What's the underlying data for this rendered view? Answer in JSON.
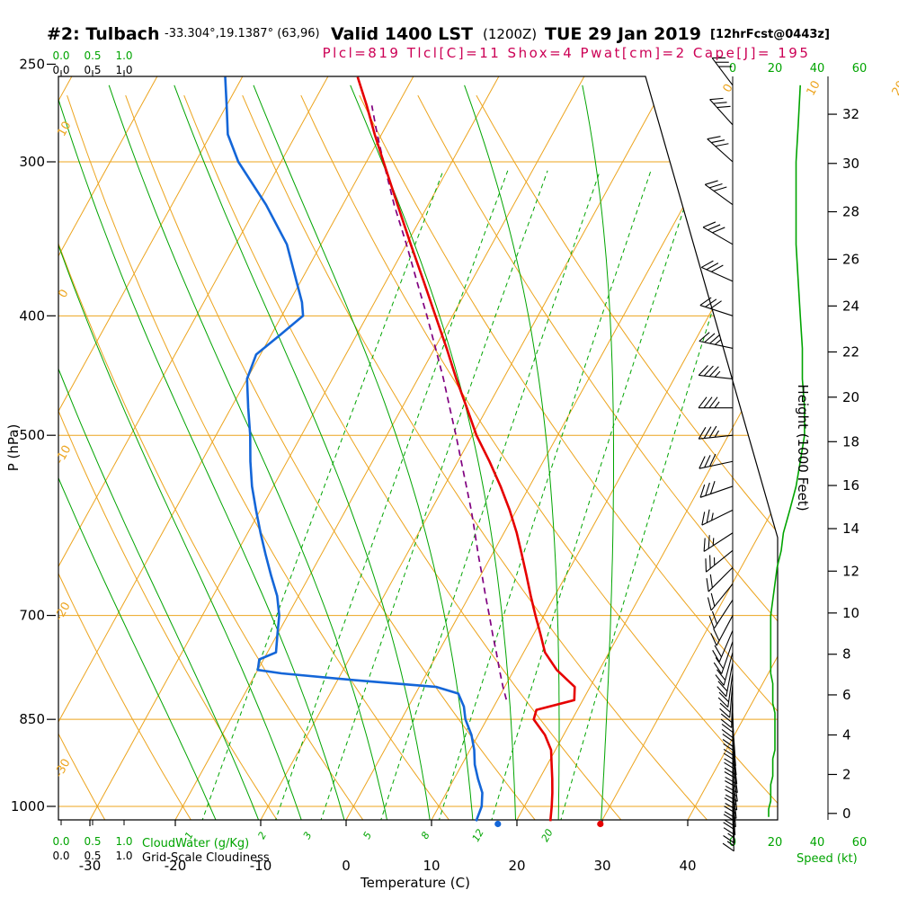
{
  "header": {
    "station_id": "#2: Tulbach",
    "coords": "-33.304°,19.1387° (63,96)",
    "valid_time": "Valid 1400 LST",
    "valid_utc": "(1200Z)",
    "valid_date": "TUE 29 Jan 2019",
    "forecast_info": "[12hrFcst@0443z]",
    "indices_line": "Plcl=819 Tlcl[C]=11 Shox=4 Pwat[cm]=2 Cape[J]= 195"
  },
  "axes": {
    "pressure_label": "P (hPa)",
    "pressure_ticks": [
      250,
      300,
      400,
      500,
      700,
      850,
      1000
    ],
    "temperature_label": "Temperature (C)",
    "temperature_ticks": [
      -30,
      -20,
      -10,
      0,
      10,
      20,
      30,
      40
    ],
    "height_label": "Height (1000 Feet)",
    "height_ticks": [
      0,
      2,
      4,
      6,
      8,
      10,
      12,
      14,
      16,
      18,
      20,
      22,
      24,
      26,
      28,
      30,
      32
    ],
    "speed_label": "Speed (kt)",
    "speed_ticks": [
      0,
      20,
      40,
      60
    ],
    "cloudwater_label": "CloudWater (g/Kg)",
    "cloudwater_ticks": [
      "0.0",
      "0.5",
      "1.0"
    ],
    "cloudiness_label": "Grid-Scale Cloudiness",
    "cloudiness_ticks": [
      "0.0",
      "0.5",
      "1.0"
    ],
    "mixing_ratio_labels": [
      1,
      2,
      3,
      5,
      8,
      12,
      20
    ],
    "isotherm_line_labels": [
      0,
      10,
      20,
      30
    ],
    "dry_adiabat_line_labels": [
      10,
      0,
      -10,
      -20,
      -30
    ]
  },
  "colors": {
    "grid_orange": "#eca41e",
    "grid_green": "#00a400",
    "temperature_red": "#e60000",
    "dewpoint_blue": "#1466d8",
    "parcel_purple": "#800080",
    "indices_crimson": "#cc0055",
    "frame_black": "#000000"
  },
  "chart_data": {
    "type": "line",
    "subtype": "skew-t-log-p-sounding",
    "pressure_range_hpa": [
      255,
      1030
    ],
    "indices": {
      "plcl_hpa": 819,
      "tlcl_c": 11,
      "showalter": 4,
      "pwat_cm": 2,
      "cape_j": 195
    },
    "surface_markers": {
      "temperature_c": 30,
      "dewpoint_c": 18
    },
    "temperature_profile_c": [
      [
        1028,
        24.0
      ],
      [
        1000,
        23.2
      ],
      [
        975,
        22.4
      ],
      [
        950,
        21.5
      ],
      [
        925,
        20.5
      ],
      [
        900,
        19.5
      ],
      [
        875,
        17.8
      ],
      [
        850,
        15.5
      ],
      [
        835,
        15.2
      ],
      [
        820,
        19.0
      ],
      [
        800,
        18.2
      ],
      [
        775,
        15.0
      ],
      [
        750,
        12.5
      ],
      [
        725,
        10.8
      ],
      [
        700,
        9.0
      ],
      [
        675,
        7.2
      ],
      [
        650,
        5.4
      ],
      [
        625,
        3.5
      ],
      [
        600,
        1.5
      ],
      [
        575,
        -0.8
      ],
      [
        550,
        -3.4
      ],
      [
        525,
        -6.3
      ],
      [
        500,
        -9.5
      ],
      [
        475,
        -12.4
      ],
      [
        450,
        -15.5
      ],
      [
        425,
        -18.6
      ],
      [
        400,
        -22.0
      ],
      [
        375,
        -25.6
      ],
      [
        350,
        -29.5
      ],
      [
        325,
        -33.6
      ],
      [
        300,
        -38.0
      ],
      [
        285,
        -40.8
      ],
      [
        270,
        -43.6
      ],
      [
        256,
        -46.5
      ]
    ],
    "dewpoint_profile_c": [
      [
        1028,
        15.3
      ],
      [
        1000,
        15.0
      ],
      [
        975,
        14.2
      ],
      [
        950,
        12.8
      ],
      [
        925,
        11.5
      ],
      [
        900,
        10.5
      ],
      [
        875,
        9.2
      ],
      [
        850,
        7.5
      ],
      [
        830,
        6.5
      ],
      [
        810,
        5.0
      ],
      [
        800,
        2.0
      ],
      [
        790,
        -8.0
      ],
      [
        780,
        -17.0
      ],
      [
        775,
        -20.0
      ],
      [
        760,
        -20.5
      ],
      [
        750,
        -19.0
      ],
      [
        725,
        -20.0
      ],
      [
        700,
        -21.0
      ],
      [
        675,
        -22.5
      ],
      [
        650,
        -24.5
      ],
      [
        625,
        -26.5
      ],
      [
        600,
        -28.5
      ],
      [
        575,
        -30.5
      ],
      [
        550,
        -32.5
      ],
      [
        525,
        -34.3
      ],
      [
        500,
        -36.0
      ],
      [
        475,
        -38.0
      ],
      [
        450,
        -40.0
      ],
      [
        430,
        -40.5
      ],
      [
        415,
        -39.0
      ],
      [
        400,
        -37.5
      ],
      [
        390,
        -38.5
      ],
      [
        375,
        -40.5
      ],
      [
        350,
        -44.0
      ],
      [
        325,
        -49.0
      ],
      [
        300,
        -55.0
      ],
      [
        285,
        -58.0
      ],
      [
        270,
        -60.0
      ],
      [
        256,
        -62.0
      ]
    ],
    "parcel_path_c": [
      [
        819,
        11.0
      ],
      [
        800,
        9.8
      ],
      [
        775,
        8.3
      ],
      [
        750,
        6.8
      ],
      [
        725,
        5.2
      ],
      [
        700,
        3.6
      ],
      [
        675,
        1.9
      ],
      [
        650,
        0.2
      ],
      [
        625,
        -1.6
      ],
      [
        600,
        -3.4
      ],
      [
        575,
        -5.3
      ],
      [
        550,
        -7.4
      ],
      [
        525,
        -9.6
      ],
      [
        500,
        -11.9
      ],
      [
        475,
        -14.4
      ],
      [
        450,
        -17.0
      ],
      [
        425,
        -19.9
      ],
      [
        400,
        -23.0
      ],
      [
        375,
        -26.4
      ],
      [
        350,
        -30.0
      ],
      [
        325,
        -34.0
      ],
      [
        300,
        -38.0
      ],
      [
        285,
        -40.5
      ],
      [
        270,
        -43.0
      ]
    ],
    "wind_profile": [
      [
        1020,
        178,
        17
      ],
      [
        1005,
        177,
        17
      ],
      [
        990,
        176,
        18
      ],
      [
        975,
        175,
        18
      ],
      [
        960,
        174,
        18
      ],
      [
        945,
        173,
        19
      ],
      [
        930,
        172,
        19
      ],
      [
        915,
        172,
        19
      ],
      [
        900,
        173,
        20
      ],
      [
        885,
        174,
        20
      ],
      [
        870,
        175,
        20
      ],
      [
        855,
        176,
        20
      ],
      [
        840,
        178,
        20
      ],
      [
        825,
        180,
        19
      ],
      [
        810,
        182,
        19
      ],
      [
        795,
        185,
        19
      ],
      [
        780,
        188,
        18
      ],
      [
        765,
        191,
        18
      ],
      [
        750,
        195,
        18
      ],
      [
        735,
        199,
        18
      ],
      [
        720,
        203,
        18
      ],
      [
        700,
        208,
        18
      ],
      [
        680,
        213,
        19
      ],
      [
        660,
        219,
        20
      ],
      [
        640,
        225,
        21
      ],
      [
        620,
        231,
        23
      ],
      [
        600,
        237,
        24
      ],
      [
        575,
        244,
        27
      ],
      [
        550,
        251,
        30
      ],
      [
        525,
        258,
        32
      ],
      [
        500,
        264,
        34
      ],
      [
        475,
        270,
        34
      ],
      [
        450,
        276,
        33
      ],
      [
        425,
        282,
        33
      ],
      [
        400,
        288,
        32
      ],
      [
        375,
        294,
        31
      ],
      [
        350,
        300,
        30
      ],
      [
        325,
        306,
        30
      ],
      [
        300,
        312,
        30
      ],
      [
        280,
        318,
        31
      ],
      [
        260,
        323,
        32
      ]
    ]
  }
}
